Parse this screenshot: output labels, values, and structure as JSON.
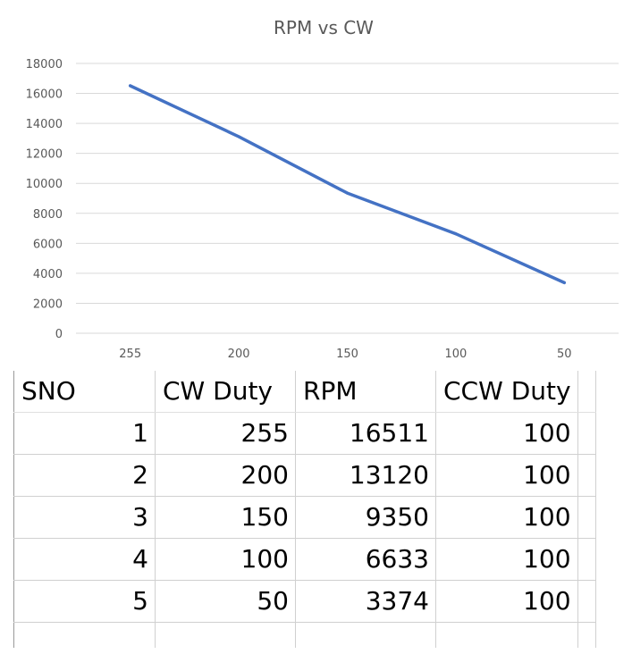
{
  "chart_data": {
    "type": "line",
    "title": "RPM vs CW",
    "categories": [
      "255",
      "200",
      "150",
      "100",
      "50"
    ],
    "values": [
      16511,
      13120,
      9350,
      6633,
      3374
    ],
    "ylim": [
      0,
      18000
    ],
    "yticks": [
      0,
      2000,
      4000,
      6000,
      8000,
      10000,
      12000,
      14000,
      16000,
      18000
    ],
    "grid": true,
    "line_color": "#4472c4",
    "grid_color": "#d9d9d9"
  },
  "table": {
    "headers": [
      "SNO",
      "CW Duty",
      "RPM",
      "CCW Duty"
    ],
    "rows": [
      [
        "1",
        "255",
        "16511",
        "100"
      ],
      [
        "2",
        "200",
        "13120",
        "100"
      ],
      [
        "3",
        "150",
        "9350",
        "100"
      ],
      [
        "4",
        "100",
        "6633",
        "100"
      ],
      [
        "5",
        "50",
        "3374",
        "100"
      ]
    ]
  }
}
